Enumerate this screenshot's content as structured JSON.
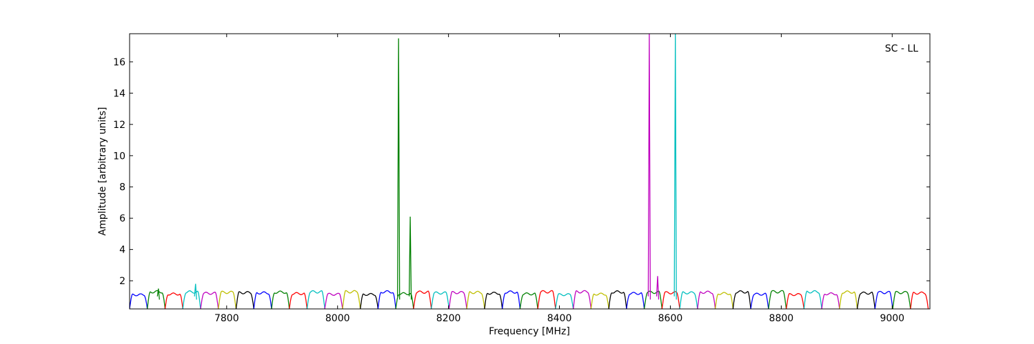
{
  "chart_data": {
    "type": "line",
    "title": "",
    "annotation": "SC - LL",
    "xlabel": "Frequency [MHz]",
    "ylabel": "Amplitude [arbitrary units]",
    "xlim": [
      7625,
      9068
    ],
    "ylim": [
      0.2,
      17.8
    ],
    "xticks": [
      7800,
      8000,
      8200,
      8400,
      8600,
      8800,
      9000
    ],
    "yticks": [
      2,
      4,
      6,
      8,
      10,
      12,
      14,
      16
    ],
    "grid": false,
    "legend": "none",
    "series_colors": [
      "#0000ff",
      "#008000",
      "#ff0000",
      "#00bfbf",
      "#bf00bf",
      "#bfbf00",
      "#000000"
    ],
    "channels": {
      "start_mhz": 7625,
      "width_mhz": 32,
      "count": 45,
      "typical_amplitude": 1.2
    },
    "spikes": [
      {
        "x": 8110,
        "y": 17.5,
        "color": "#008000"
      },
      {
        "x": 8131,
        "y": 6.1,
        "color": "#008000"
      },
      {
        "x": 8562,
        "y": 17.8,
        "color": "#bf00bf"
      },
      {
        "x": 8577,
        "y": 2.3,
        "color": "#bf00bf"
      },
      {
        "x": 8609,
        "y": 17.8,
        "color": "#00bfbf"
      },
      {
        "x": 7744,
        "y": 1.8,
        "color": "#00bfbf"
      },
      {
        "x": 7677,
        "y": 1.5,
        "color": "#008000"
      }
    ]
  }
}
